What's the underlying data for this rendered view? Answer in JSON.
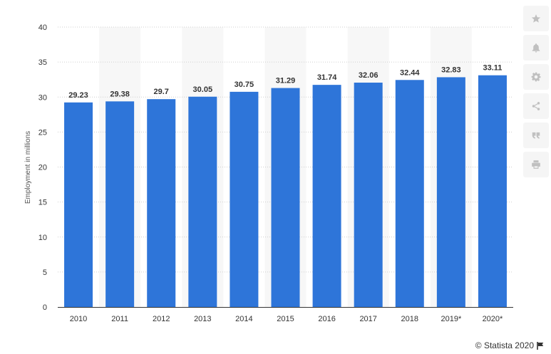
{
  "chart_data": {
    "type": "bar",
    "categories": [
      "2010",
      "2011",
      "2012",
      "2013",
      "2014",
      "2015",
      "2016",
      "2017",
      "2018",
      "2019*",
      "2020*"
    ],
    "values": [
      29.23,
      29.38,
      29.7,
      30.05,
      30.75,
      31.29,
      31.74,
      32.06,
      32.44,
      32.83,
      33.11
    ],
    "value_labels": [
      "29.23",
      "29.38",
      "29.7",
      "30.05",
      "30.75",
      "31.29",
      "31.74",
      "32.06",
      "32.44",
      "32.83",
      "33.11"
    ],
    "ylabel": "Employment in millions",
    "ylim": [
      0,
      40
    ],
    "yticks": [
      "0",
      "5",
      "10",
      "15",
      "20",
      "25",
      "30",
      "35",
      "40"
    ],
    "grid": true,
    "bar_color": "#2e75d9"
  },
  "sidebar": {
    "buttons": [
      {
        "name": "favorite-button",
        "icon": "star-icon"
      },
      {
        "name": "notification-button",
        "icon": "bell-icon"
      },
      {
        "name": "settings-button",
        "icon": "gear-icon"
      },
      {
        "name": "share-button",
        "icon": "share-icon"
      },
      {
        "name": "cite-button",
        "icon": "quote-icon"
      },
      {
        "name": "print-button",
        "icon": "print-icon"
      }
    ]
  },
  "credit": {
    "text": "© Statista 2020",
    "icon": "flag-icon"
  }
}
